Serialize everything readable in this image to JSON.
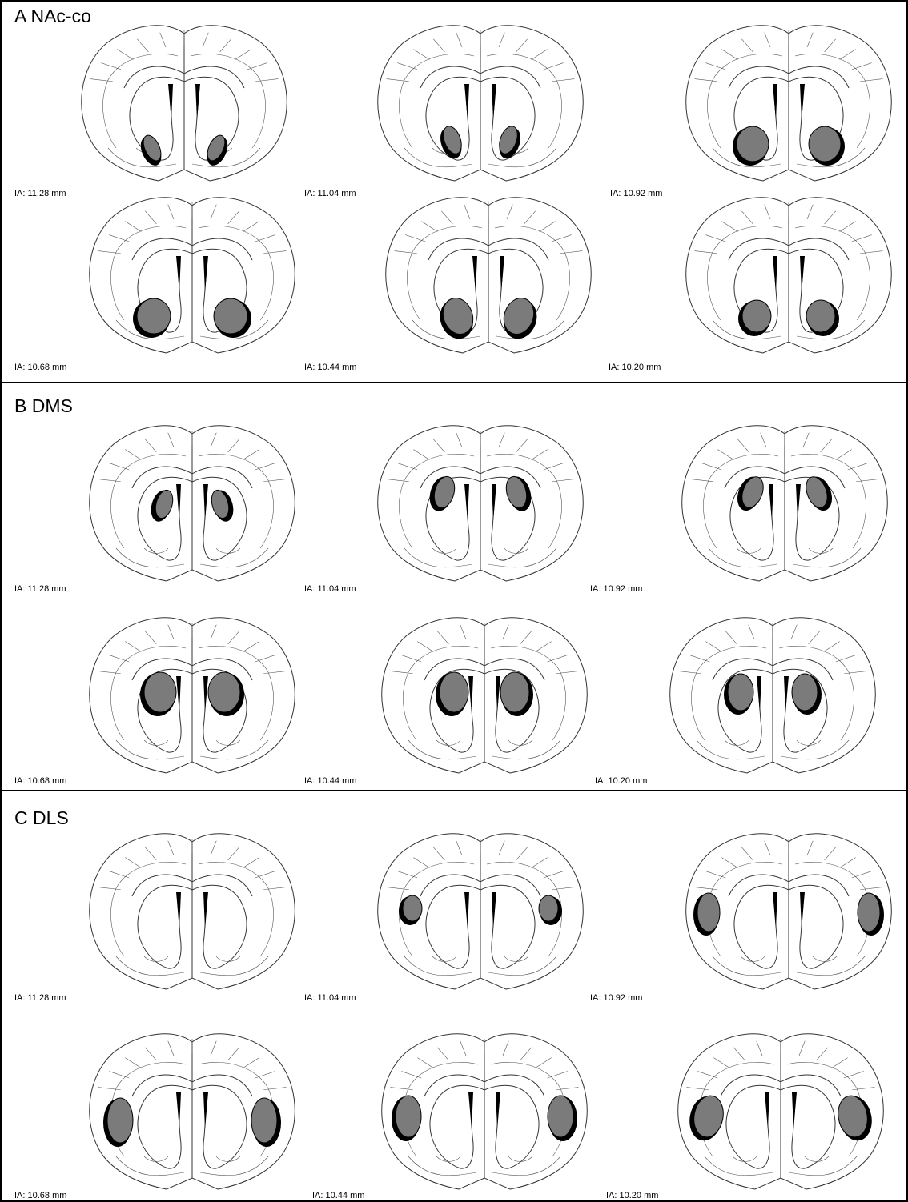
{
  "panels": [
    {
      "title": "A NAc-co",
      "sections": [
        {
          "label": "IA: 11.28 mm"
        },
        {
          "label": "IA: 11.04 mm"
        },
        {
          "label": "IA: 10.92 mm"
        },
        {
          "label": "IA: 10.68 mm"
        },
        {
          "label": "IA: 10.44 mm"
        },
        {
          "label": "IA: 10.20 mm"
        }
      ]
    },
    {
      "title": "B DMS",
      "sections": [
        {
          "label": "IA: 11.28 mm"
        },
        {
          "label": "IA: 11.04 mm"
        },
        {
          "label": "IA: 10.92 mm"
        },
        {
          "label": "IA: 10.68 mm"
        },
        {
          "label": "IA: 10.44 mm"
        },
        {
          "label": "IA: 10.20 mm"
        }
      ]
    },
    {
      "title": "C DLS",
      "sections": [
        {
          "label": "IA: 11.28 mm"
        },
        {
          "label": "IA: 11.04 mm"
        },
        {
          "label": "IA: 10.92 mm"
        },
        {
          "label": "IA: 10.68 mm"
        },
        {
          "label": "IA: 10.44 mm"
        },
        {
          "label": "IA: 10.20 mm"
        }
      ]
    }
  ]
}
